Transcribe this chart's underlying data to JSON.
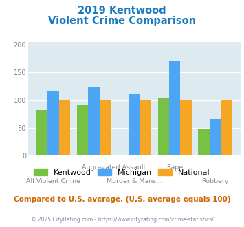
{
  "title_line1": "2019 Kentwood",
  "title_line2": "Violent Crime Comparison",
  "categories": [
    "All Violent Crime",
    "Aggravated Assault",
    "Murder & Mans...",
    "Rape",
    "Robbery"
  ],
  "series": {
    "Kentwood": [
      82,
      92,
      null,
      105,
      49
    ],
    "Michigan": [
      117,
      123,
      112,
      170,
      66
    ],
    "National": [
      100,
      100,
      100,
      100,
      100
    ]
  },
  "bar_colors": {
    "Kentwood": "#77c244",
    "Michigan": "#4da6f5",
    "National": "#f5a623"
  },
  "ylim": [
    0,
    205
  ],
  "yticks": [
    0,
    50,
    100,
    150,
    200
  ],
  "plot_bg": "#ddeaf0",
  "title_color": "#1a7abf",
  "tick_color": "#888888",
  "footer_note": "Compared to U.S. average. (U.S. average equals 100)",
  "footer_note_color": "#cc6600",
  "copyright_text": "© 2025 CityRating.com - https://www.cityrating.com/crime-statistics/",
  "copyright_color": "#8888aa"
}
